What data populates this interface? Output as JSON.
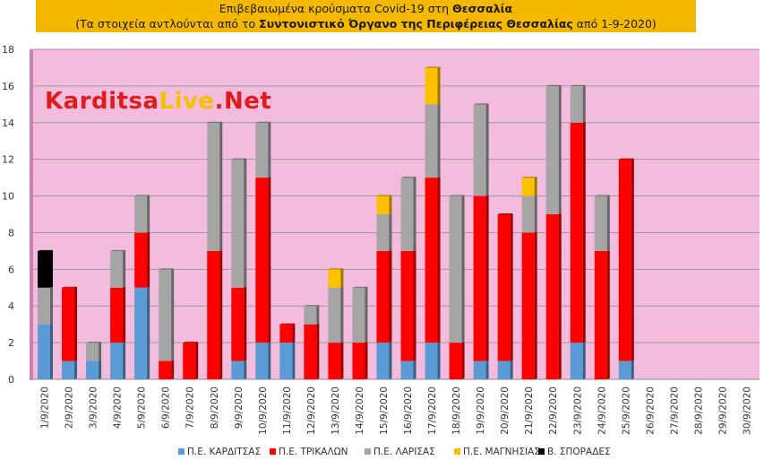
{
  "header": {
    "line1_prefix": "Επιβεβαιωμένα κρούσματα Covid-19 στη ",
    "line1_highlight": "Θεσσαλία",
    "line2_prefix": "(Τα στοιχεία αντλούνται από το ",
    "line2_highlight": "Συντονιστικό Όργανο της Περιφέρειας Θεσσαλίας",
    "line2_suffix": " από 1-9-2020)"
  },
  "watermark": {
    "part1": "Karditsa",
    "part2": "Live",
    "part3": ".Net"
  },
  "colors": {
    "plot_background": "#f4bcdc",
    "side_wall": "#cf7fb2",
    "title_background": "#f5b800",
    "karditsa": "#5b9bd5",
    "trikala": "#ff0000",
    "larisa": "#a5a5a5",
    "magnisia": "#ffc000",
    "sporades": "#000000"
  },
  "chart_data": {
    "type": "bar",
    "stacked": true,
    "ylim": [
      0,
      18
    ],
    "yticks": [
      0,
      2,
      4,
      6,
      8,
      10,
      12,
      14,
      16,
      18
    ],
    "grid": true,
    "legend_position": "bottom",
    "categories": [
      "1/9/2020",
      "2/9/2020",
      "3/9/2020",
      "4/9/2020",
      "5/9/2020",
      "6/9/2020",
      "7/9/2020",
      "8/9/2020",
      "9/9/2020",
      "10/9/2020",
      "11/9/2020",
      "12/9/2020",
      "13/9/2020",
      "14/9/2020",
      "15/9/2020",
      "16/9/2020",
      "17/9/2020",
      "18/9/2020",
      "19/9/2020",
      "20/9/2020",
      "21/9/2020",
      "22/9/2020",
      "23/9/2020",
      "24/9/2020",
      "25/9/2020",
      "26/9/2020",
      "27/9/2020",
      "28/9/2020",
      "29/9/2020",
      "30/9/2020"
    ],
    "series": [
      {
        "name": "Π.Ε. ΚΑΡΔΙΤΣΑΣ",
        "color_key": "karditsa",
        "values": [
          3,
          1,
          1,
          2,
          5,
          0,
          0,
          0,
          1,
          2,
          2,
          0,
          0,
          0,
          2,
          1,
          2,
          0,
          1,
          1,
          0,
          0,
          2,
          0,
          1,
          0,
          0,
          0,
          0,
          0
        ]
      },
      {
        "name": "Π.Ε. ΤΡΙΚΑΛΩΝ",
        "color_key": "trikala",
        "values": [
          0,
          4,
          0,
          3,
          3,
          1,
          2,
          7,
          4,
          9,
          1,
          3,
          2,
          2,
          5,
          6,
          9,
          2,
          9,
          8,
          8,
          9,
          12,
          7,
          11,
          0,
          0,
          0,
          0,
          0
        ]
      },
      {
        "name": "Π.Ε. ΛΑΡΙΣΑΣ",
        "color_key": "larisa",
        "values": [
          2,
          0,
          1,
          2,
          2,
          5,
          0,
          7,
          7,
          3,
          0,
          1,
          3,
          3,
          2,
          4,
          4,
          8,
          5,
          0,
          2,
          7,
          2,
          3,
          0,
          0,
          0,
          0,
          0,
          0
        ]
      },
      {
        "name": "Π.Ε. ΜΑΓΝΗΣΙΑΣ",
        "color_key": "magnisia",
        "values": [
          0,
          0,
          0,
          0,
          0,
          0,
          0,
          0,
          0,
          0,
          0,
          0,
          1,
          0,
          1,
          0,
          2,
          0,
          0,
          0,
          1,
          0,
          0,
          0,
          0,
          0,
          0,
          0,
          0,
          0
        ]
      },
      {
        "name": "Β. ΣΠΟΡΑΔΕΣ",
        "color_key": "sporades",
        "values": [
          2,
          0,
          0,
          0,
          0,
          0,
          0,
          0,
          0,
          0,
          0,
          0,
          0,
          0,
          0,
          0,
          0,
          0,
          0,
          0,
          0,
          0,
          0,
          0,
          0,
          0,
          0,
          0,
          0,
          0
        ]
      }
    ]
  }
}
